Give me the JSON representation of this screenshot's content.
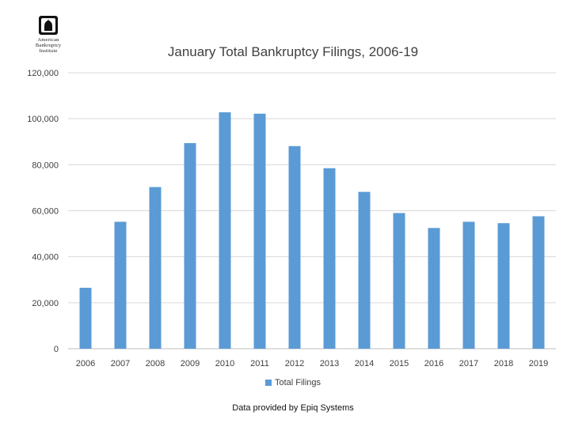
{
  "logo": {
    "icon": "capitol-dome-icon",
    "line1": "American",
    "line2": "Bankruptcy",
    "line3": "Institute"
  },
  "footnote": "Data provided by Epiq Systems",
  "colors": {
    "bar": "#5b9bd5",
    "grid": "#d9d9d9",
    "axis": "#bfbfbf"
  },
  "chart_data": {
    "type": "bar",
    "title": "January Total Bankruptcy Filings, 2006-19",
    "xlabel": "",
    "ylabel": "",
    "categories": [
      "2006",
      "2007",
      "2008",
      "2009",
      "2010",
      "2011",
      "2012",
      "2013",
      "2014",
      "2015",
      "2016",
      "2017",
      "2018",
      "2019"
    ],
    "series": [
      {
        "name": "Total Filings",
        "values": [
          26500,
          55200,
          70300,
          89400,
          102800,
          102200,
          88100,
          78500,
          68200,
          59000,
          52500,
          55200,
          54600,
          57600
        ]
      }
    ],
    "ylim": [
      0,
      120000
    ],
    "yticks": [
      "0",
      "20,000",
      "40,000",
      "60,000",
      "80,000",
      "100,000",
      "120,000"
    ],
    "grid": true,
    "legend_position": "bottom"
  }
}
